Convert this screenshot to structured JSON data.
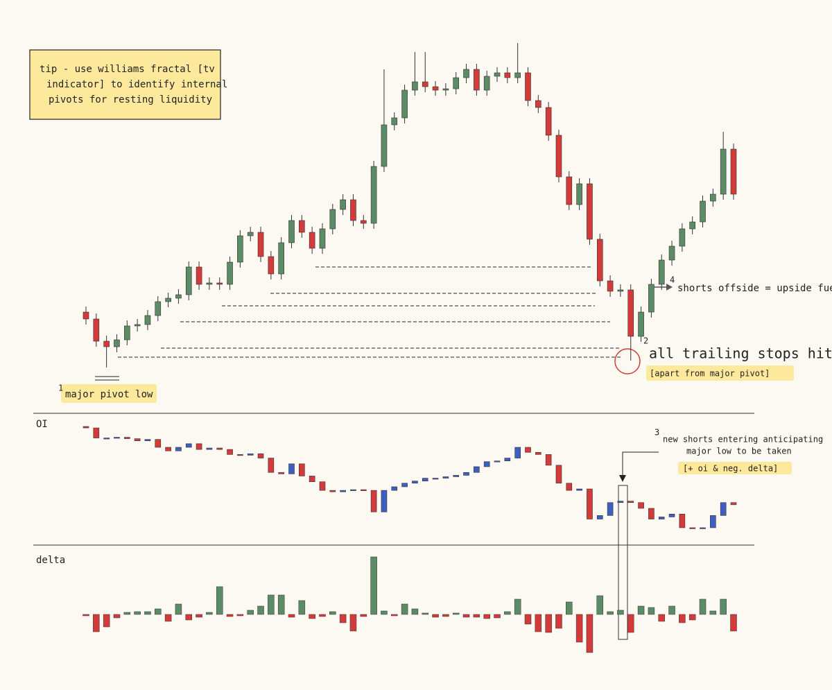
{
  "chart_data": [
    {
      "type": "candlestick",
      "up_color": "#5b8c65",
      "down_color": "#d33a3a",
      "open": [
        150,
        140,
        108,
        100,
        110,
        130,
        132,
        145,
        165,
        170,
        175,
        215,
        190,
        192,
        190,
        222,
        260,
        265,
        230,
        205,
        250,
        282,
        265,
        242,
        270,
        298,
        312,
        282,
        278,
        360,
        420,
        430,
        470,
        482,
        475,
        470,
        472,
        488,
        500,
        470,
        490,
        495,
        488,
        495,
        455,
        445,
        405,
        345,
        305,
        335,
        255,
        195,
        180,
        182,
        115,
        150,
        190,
        225,
        245,
        270,
        280,
        310,
        320,
        385
      ],
      "high": [
        158,
        148,
        116,
        118,
        138,
        140,
        153,
        173,
        178,
        183,
        223,
        223,
        200,
        200,
        230,
        268,
        273,
        273,
        238,
        258,
        290,
        290,
        273,
        278,
        306,
        320,
        320,
        290,
        368,
        500,
        438,
        478,
        525,
        525,
        483,
        480,
        496,
        508,
        508,
        498,
        503,
        503,
        538,
        503,
        463,
        453,
        413,
        353,
        343,
        343,
        263,
        203,
        190,
        190,
        158,
        198,
        233,
        253,
        278,
        288,
        318,
        328,
        410,
        393
      ],
      "low": [
        132,
        100,
        70,
        92,
        102,
        122,
        124,
        137,
        157,
        162,
        167,
        182,
        182,
        182,
        182,
        214,
        252,
        222,
        197,
        197,
        242,
        257,
        234,
        234,
        262,
        290,
        274,
        270,
        270,
        352,
        412,
        422,
        462,
        467,
        462,
        462,
        464,
        480,
        462,
        462,
        482,
        480,
        480,
        447,
        437,
        397,
        337,
        297,
        297,
        247,
        187,
        172,
        172,
        80,
        107,
        142,
        182,
        217,
        237,
        262,
        272,
        302,
        312,
        312
      ],
      "close": [
        140,
        108,
        100,
        110,
        130,
        132,
        145,
        165,
        170,
        175,
        215,
        190,
        192,
        190,
        222,
        260,
        265,
        230,
        205,
        250,
        282,
        265,
        242,
        270,
        298,
        312,
        282,
        278,
        360,
        420,
        430,
        470,
        482,
        475,
        470,
        472,
        488,
        500,
        470,
        490,
        495,
        488,
        495,
        455,
        445,
        405,
        345,
        305,
        335,
        255,
        195,
        180,
        182,
        115,
        150,
        190,
        225,
        245,
        270,
        280,
        310,
        320,
        385,
        320
      ],
      "tip": [
        "tip - use williams fractal [tv",
        "indicator] to identify internal",
        "pivots for resting liquidity"
      ],
      "annotations": [
        "1",
        "major pivot low",
        "2",
        "all trailing stops hit",
        "[apart from major pivot]",
        "4",
        "shorts offside = upside fuel"
      ]
    },
    {
      "type": "candlestick",
      "title": "OI",
      "up_color": "#3d5fc2",
      "down_color": "#d33a3a",
      "open": [
        184,
        182,
        168,
        168,
        169,
        167,
        164,
        166,
        155,
        150,
        155,
        160,
        152,
        154,
        152,
        145,
        144,
        146,
        140,
        120,
        118,
        132,
        115,
        107,
        95,
        93,
        95,
        96,
        95,
        65,
        95,
        100,
        105,
        108,
        112,
        112,
        114,
        116,
        120,
        128,
        135,
        136,
        140,
        155,
        148,
        145,
        130,
        105,
        95,
        97,
        55,
        60,
        78,
        80,
        78,
        70,
        55,
        58,
        62,
        43,
        42,
        43,
        60,
        78
      ],
      "close": [
        182,
        168,
        168,
        169,
        167,
        164,
        166,
        155,
        150,
        155,
        160,
        152,
        154,
        152,
        145,
        144,
        146,
        140,
        120,
        118,
        132,
        115,
        107,
        95,
        93,
        95,
        96,
        95,
        65,
        95,
        100,
        105,
        108,
        112,
        112,
        114,
        116,
        120,
        128,
        135,
        136,
        140,
        155,
        148,
        145,
        130,
        105,
        95,
        97,
        55,
        60,
        78,
        80,
        78,
        70,
        55,
        58,
        62,
        43,
        42,
        43,
        60,
        78,
        75
      ],
      "annotations": [
        "3",
        "new shorts entering anticipating",
        "major low to be taken",
        "[+ oi & neg. delta]"
      ]
    },
    {
      "type": "bar",
      "title": "delta",
      "up_color": "#5b8c65",
      "down_color": "#d33a3a",
      "values": [
        -2,
        -25,
        -18,
        -5,
        3,
        4,
        4,
        8,
        -10,
        15,
        -8,
        -4,
        3,
        40,
        -3,
        -2,
        6,
        12,
        28,
        28,
        -4,
        20,
        -6,
        -3,
        4,
        -12,
        -24,
        -3,
        83,
        5,
        -2,
        15,
        8,
        2,
        -4,
        -3,
        2,
        -4,
        -4,
        -6,
        -5,
        4,
        22,
        -14,
        -25,
        -26,
        -20,
        18,
        -40,
        -55,
        27,
        4,
        6,
        -26,
        12,
        10,
        -10,
        12,
        -12,
        -8,
        22,
        5,
        22,
        -24
      ]
    }
  ]
}
